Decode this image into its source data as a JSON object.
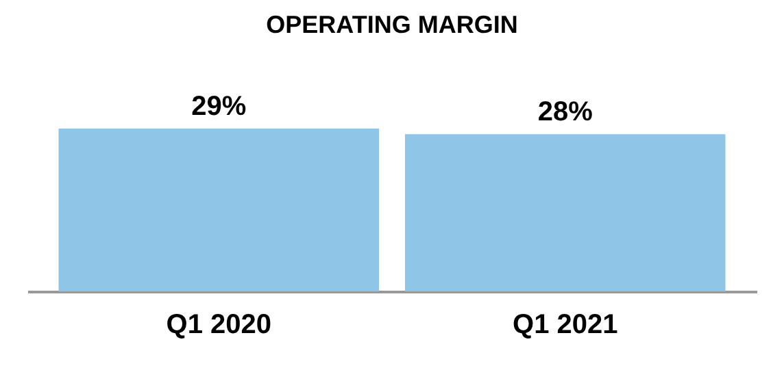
{
  "chart_data": {
    "type": "bar",
    "title": "OPERATING MARGIN",
    "categories": [
      "Q1 2020",
      "Q1 2021"
    ],
    "values": [
      29,
      28
    ],
    "value_labels": [
      "29%",
      "28%"
    ],
    "color": "#8fc6e8"
  }
}
